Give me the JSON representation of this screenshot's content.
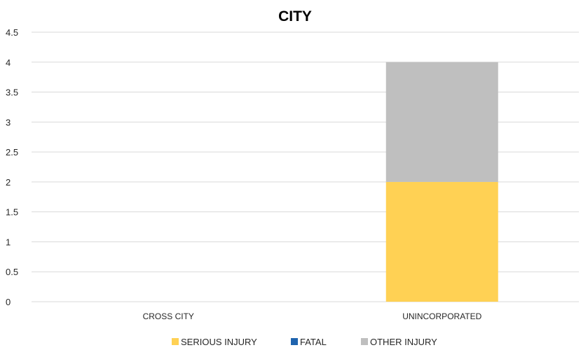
{
  "chart_data": {
    "type": "bar",
    "stacked": true,
    "title": "CITY",
    "xlabel": "",
    "ylabel": "",
    "categories": [
      "CROSS CITY",
      "UNINCORPORATED"
    ],
    "series": [
      {
        "name": "SERIOUS INJURY",
        "color": "#FFD154",
        "values": [
          0,
          2
        ]
      },
      {
        "name": "FATAL",
        "color": "#1F64AE",
        "values": [
          0,
          0
        ]
      },
      {
        "name": "OTHER INJURY",
        "color": "#BFBFBF",
        "values": [
          0,
          2
        ]
      }
    ],
    "ylim": [
      0,
      4.5
    ],
    "yticks": [
      "0",
      "0.5",
      "1",
      "1.5",
      "2",
      "2.5",
      "3",
      "3.5",
      "4",
      "4.5"
    ],
    "grid": true,
    "legend_position": "bottom"
  }
}
